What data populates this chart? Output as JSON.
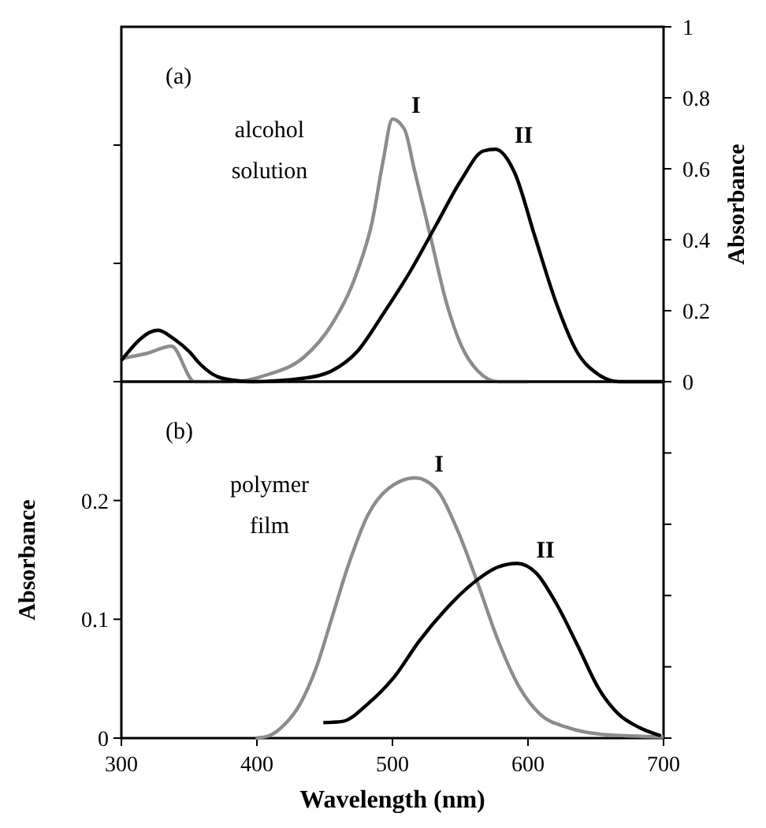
{
  "chart_data": [
    {
      "type": "line",
      "xlim": [
        300,
        700
      ],
      "y2lim": [
        0,
        1
      ],
      "y2ticks": [
        0,
        0.2,
        0.4,
        0.6,
        0.8,
        1
      ],
      "y2label": "Absorbance",
      "annotations": [
        "(a)",
        "alcohol solution"
      ],
      "grid": false,
      "marker": "none",
      "line_style": "solid",
      "series": [
        {
          "name": "I",
          "color": "#8c8c8c",
          "axis": "y2",
          "x": [
            300,
            319,
            337,
            354,
            381,
            408,
            435,
            455,
            474,
            485,
            493,
            500,
            509,
            516,
            528,
            540,
            551,
            563,
            578,
            600
          ],
          "values": [
            0.065,
            0.08,
            0.1,
            0,
            0,
            0.02,
            0.07,
            0.16,
            0.31,
            0.45,
            0.62,
            0.74,
            0.71,
            0.6,
            0.41,
            0.22,
            0.1,
            0.03,
            0,
            0
          ]
        },
        {
          "name": "II",
          "color": "#000000",
          "axis": "y2",
          "x": [
            300,
            327,
            339,
            350,
            358,
            374,
            397,
            435,
            455,
            474,
            493,
            513,
            532,
            551,
            567,
            576,
            590,
            605,
            621,
            636,
            652,
            667,
            700
          ],
          "values": [
            0.06,
            0.145,
            0.12,
            0.085,
            0.05,
            0.01,
            0,
            0.01,
            0.03,
            0.085,
            0.19,
            0.31,
            0.44,
            0.57,
            0.65,
            0.655,
            0.59,
            0.41,
            0.22,
            0.085,
            0.02,
            0,
            0
          ]
        }
      ]
    },
    {
      "type": "line",
      "xlim": [
        300,
        700
      ],
      "xticks": [
        300,
        400,
        500,
        600,
        700
      ],
      "ylim": [
        0,
        0.3
      ],
      "yticks": [
        0,
        0.1,
        0.2
      ],
      "ylabel": "Absorbance",
      "xlabel": "Wavelength (nm)",
      "annotations": [
        "(b)",
        "polymer film"
      ],
      "grid": false,
      "marker": "none",
      "line_style": "solid",
      "series": [
        {
          "name": "I",
          "color": "#8c8c8c",
          "x": [
            399,
            409,
            420,
            432,
            444,
            455,
            467,
            482,
            497,
            517,
            532,
            548,
            563,
            578,
            594,
            609,
            629,
            656,
            700
          ],
          "values": [
            0,
            0.002,
            0.011,
            0.029,
            0.06,
            0.1,
            0.144,
            0.188,
            0.21,
            0.219,
            0.21,
            0.175,
            0.13,
            0.082,
            0.042,
            0.02,
            0.009,
            0.003,
            0.001
          ]
        },
        {
          "name": "II",
          "color": "#000000",
          "x": [
            449,
            463,
            482,
            501,
            520,
            539,
            559,
            578,
            592,
            606,
            621,
            637,
            652,
            667,
            682,
            698
          ],
          "values": [
            0.013,
            0.014,
            0.029,
            0.051,
            0.082,
            0.108,
            0.13,
            0.144,
            0.147,
            0.139,
            0.113,
            0.077,
            0.042,
            0.02,
            0.009,
            0.002
          ]
        }
      ]
    }
  ]
}
